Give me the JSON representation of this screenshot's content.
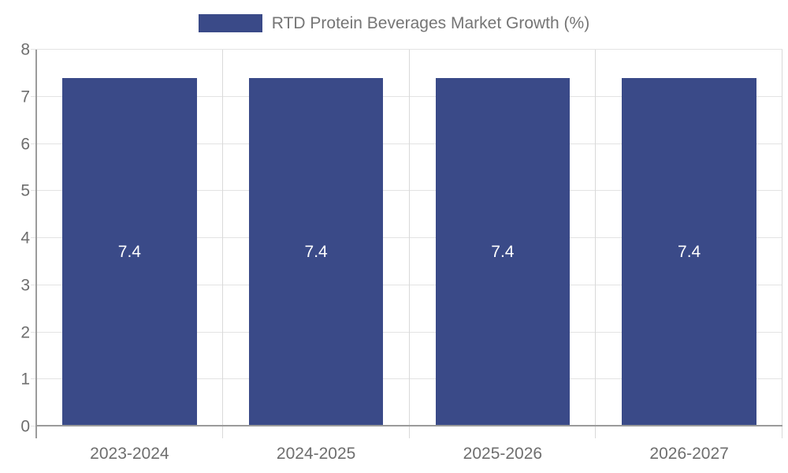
{
  "legend": {
    "label": "RTD Protein Beverages Market Growth (%)"
  },
  "chart_data": {
    "type": "bar",
    "title": "RTD Protein Beverages Market Growth (%)",
    "categories": [
      "2023-2024",
      "2024-2025",
      "2025-2026",
      "2026-2027"
    ],
    "series": [
      {
        "name": "RTD Protein Beverages Market Growth (%)",
        "values": [
          7.4,
          7.4,
          7.4,
          7.4
        ],
        "color": "#3A4A88"
      }
    ],
    "value_labels": [
      "7.4",
      "7.4",
      "7.4",
      "7.4"
    ],
    "xlabel": "",
    "ylabel": "",
    "ylim": [
      0,
      8
    ],
    "yticks": [
      0,
      1,
      2,
      3,
      4,
      5,
      6,
      7,
      8
    ],
    "grid": true,
    "legend_position": "top-center",
    "colors": {
      "bar": "#3A4A88",
      "grid_h": "#e3e3e3",
      "grid_v": "#d9d9d9",
      "axis": "#9b9b9b",
      "tick_text": "#6e6e6e",
      "legend_text": "#757575",
      "bar_label_text": "#ffffff",
      "background": "#ffffff"
    }
  }
}
